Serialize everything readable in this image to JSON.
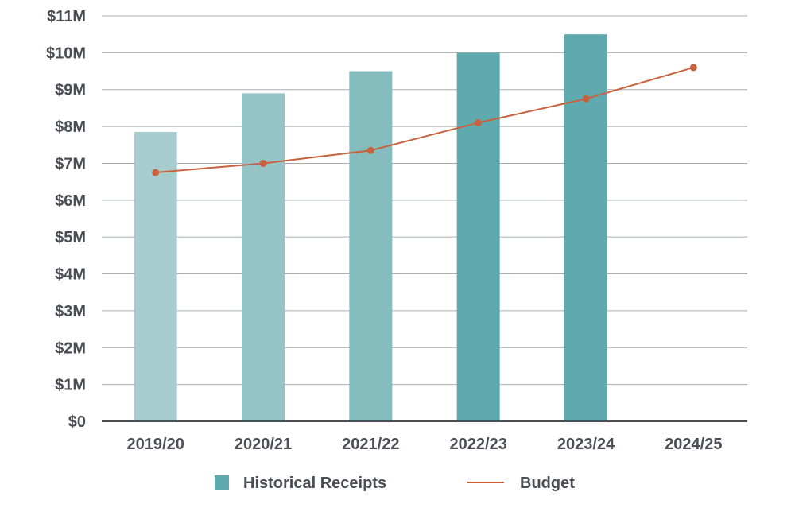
{
  "chart_data": {
    "type": "bar",
    "title": "",
    "xlabel": "",
    "ylabel": "",
    "categories": [
      "2019/20",
      "2020/21",
      "2021/22",
      "2022/23",
      "2023/24",
      "2024/25"
    ],
    "y_ticks": [
      "$0",
      "$1M",
      "$2M",
      "$3M",
      "$4M",
      "$5M",
      "$6M",
      "$7M",
      "$8M",
      "$9M",
      "$10M",
      "$11M"
    ],
    "ylim": [
      0,
      11
    ],
    "grid": true,
    "legend_position": "bottom",
    "series": [
      {
        "name": "Historical Receipts",
        "type": "bar",
        "values": [
          7.85,
          8.9,
          9.5,
          10.0,
          10.5,
          null
        ],
        "colors": [
          "#a7cccd",
          "#95c4c6",
          "#85bdbf",
          "#5eaaaf",
          "#5eaaaf"
        ]
      },
      {
        "name": "Budget",
        "type": "line",
        "values": [
          6.75,
          7.0,
          7.35,
          8.1,
          8.75,
          9.6
        ],
        "color": "#c8623e"
      }
    ]
  }
}
